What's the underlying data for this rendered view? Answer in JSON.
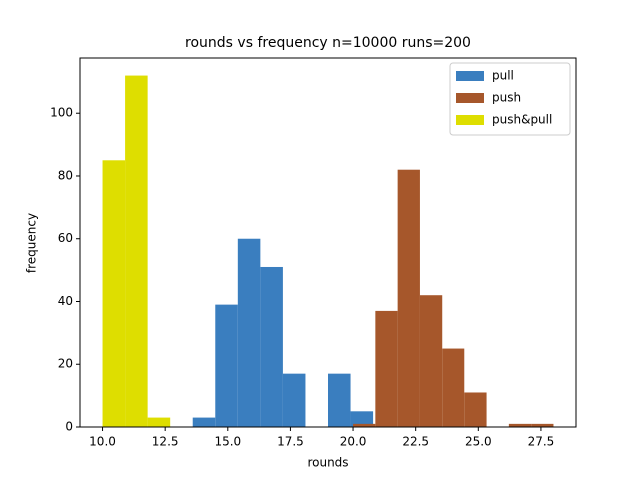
{
  "chart_data": {
    "type": "histogram",
    "title": "rounds vs frequency n=10000 runs=200",
    "x_label": "rounds",
    "y_label": "frequency",
    "xlim": [
      9.1,
      28.9
    ],
    "ylim": [
      0,
      117.6
    ],
    "xticks": [
      {
        "value": 10,
        "label": "10.0"
      },
      {
        "value": 12.5,
        "label": "12.5"
      },
      {
        "value": 15,
        "label": "15.0"
      },
      {
        "value": 17.5,
        "label": "17.5"
      },
      {
        "value": 20,
        "label": "20.0"
      },
      {
        "value": 22.5,
        "label": "22.5"
      },
      {
        "value": 25,
        "label": "25.0"
      },
      {
        "value": 27.5,
        "label": "27.5"
      }
    ],
    "yticks": [
      0,
      20,
      40,
      60,
      80,
      100
    ],
    "legend": "upper right",
    "series": [
      {
        "name": "pull",
        "color": "#3a7ebf",
        "bins": [
          13.6,
          14.5,
          15.4,
          16.3,
          17.2,
          18.1,
          19.0,
          19.9,
          20.8,
          21.7
        ],
        "values": [
          3,
          39,
          60,
          51,
          17,
          0,
          17,
          5,
          0
        ]
      },
      {
        "name": "push",
        "color": "#a6572b",
        "bins": [
          20,
          20.89,
          21.78,
          22.67,
          23.56,
          24.44,
          25.33,
          26.22,
          27.11,
          28
        ],
        "values": [
          1,
          37,
          82,
          42,
          25,
          11,
          0,
          1,
          1
        ]
      },
      {
        "name": "push&pull",
        "color": "#dede00",
        "bins": [
          10,
          10.9,
          11.8,
          12.7
        ],
        "values": [
          85,
          112,
          3
        ]
      }
    ]
  }
}
